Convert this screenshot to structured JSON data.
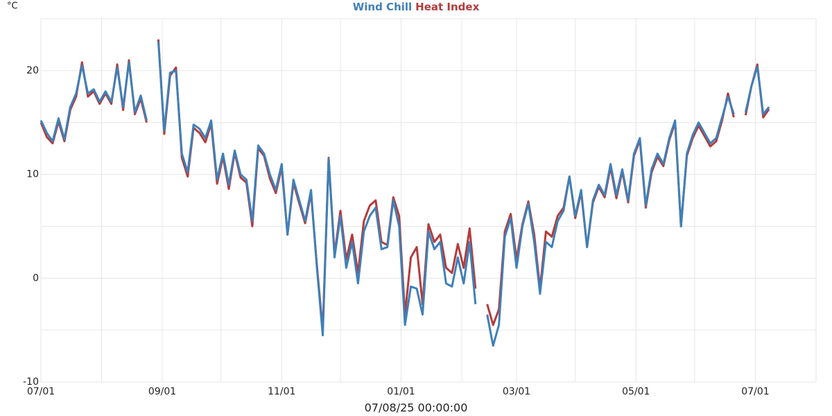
{
  "chart_data": {
    "type": "line",
    "y_label": "°C",
    "x_label": "07/08/25 00:00:00",
    "xlim": [
      0,
      396
    ],
    "xticks": [
      {
        "value": 0,
        "label": "07/01"
      },
      {
        "value": 62,
        "label": "09/01"
      },
      {
        "value": 123,
        "label": "11/01"
      },
      {
        "value": 184,
        "label": "01/01"
      },
      {
        "value": 243,
        "label": "03/01"
      },
      {
        "value": 304,
        "label": "05/01"
      },
      {
        "value": 365,
        "label": "07/01"
      }
    ],
    "x_minor_grid": [
      31,
      92,
      153,
      215,
      273,
      334
    ],
    "ylim": [
      -10,
      25
    ],
    "yticks": [
      -10,
      0,
      10,
      20
    ],
    "y_minor_grid": [
      -5,
      5,
      15
    ],
    "grid": true,
    "legend": "top",
    "x": [
      0,
      3,
      6,
      9,
      12,
      15,
      18,
      21,
      24,
      27,
      30,
      33,
      36,
      39,
      42,
      45,
      48,
      51,
      54,
      57,
      60,
      63,
      66,
      69,
      72,
      75,
      78,
      81,
      84,
      87,
      90,
      93,
      96,
      99,
      102,
      105,
      108,
      111,
      114,
      117,
      120,
      123,
      126,
      129,
      132,
      135,
      138,
      141,
      144,
      147,
      150,
      153,
      156,
      159,
      162,
      165,
      168,
      171,
      174,
      177,
      180,
      183,
      186,
      189,
      192,
      195,
      198,
      201,
      204,
      207,
      210,
      213,
      216,
      219,
      222,
      225,
      228,
      231,
      234,
      237,
      240,
      243,
      246,
      249,
      252,
      255,
      258,
      261,
      264,
      267,
      270,
      273,
      276,
      279,
      282,
      285,
      288,
      291,
      294,
      297,
      300,
      303,
      306,
      309,
      312,
      315,
      318,
      321,
      324,
      327,
      330,
      333,
      336,
      339,
      342,
      345,
      348,
      351,
      354,
      357,
      360,
      363,
      366,
      369,
      372
    ],
    "series": [
      {
        "name": "Wind Chill",
        "color": "#3f80b8",
        "values": [
          15.2,
          14.0,
          13.2,
          15.4,
          13.4,
          16.5,
          17.8,
          20.5,
          17.8,
          18.2,
          17.0,
          18.0,
          17.0,
          20.3,
          16.5,
          20.8,
          16.0,
          17.6,
          15.2,
          null,
          22.8,
          14.2,
          19.8,
          20.0,
          12.0,
          10.2,
          14.8,
          14.4,
          13.5,
          15.2,
          9.5,
          12.0,
          9.0,
          12.3,
          10.0,
          9.5,
          5.5,
          12.8,
          12.0,
          10.0,
          8.5,
          11.0,
          4.2,
          9.5,
          7.5,
          5.5,
          8.5,
          1.0,
          -5.5,
          11.5,
          2.0,
          6.0,
          1.0,
          3.5,
          -0.5,
          4.5,
          6.0,
          6.8,
          2.8,
          3.0,
          7.5,
          5.0,
          -4.5,
          -0.8,
          -1.0,
          -3.5,
          4.5,
          2.8,
          3.5,
          -0.5,
          -0.8,
          2.0,
          -0.5,
          3.5,
          -2.5,
          null,
          -3.5,
          -6.5,
          -4.5,
          4.0,
          5.8,
          1.0,
          5.0,
          7.2,
          3.5,
          -1.5,
          3.5,
          3.0,
          5.5,
          6.5,
          9.8,
          6.0,
          8.5,
          3.0,
          7.5,
          9.0,
          8.0,
          11.0,
          8.0,
          10.5,
          7.5,
          12.0,
          13.5,
          7.0,
          10.5,
          12.0,
          11.0,
          13.5,
          15.2,
          5.0,
          12.0,
          13.8,
          15.0,
          14.0,
          13.0,
          13.5,
          15.5,
          17.5,
          15.8,
          null,
          16.0,
          18.5,
          20.4,
          15.8,
          16.5
        ]
      },
      {
        "name": "Heat Index",
        "color": "#b43b3b",
        "values": [
          15.0,
          13.6,
          13.0,
          15.1,
          13.2,
          16.2,
          17.5,
          20.8,
          17.5,
          18.0,
          16.8,
          17.8,
          16.8,
          20.6,
          16.2,
          21.0,
          15.8,
          17.3,
          15.0,
          null,
          23.0,
          13.9,
          19.5,
          20.3,
          11.6,
          9.8,
          14.5,
          14.0,
          13.1,
          14.9,
          9.1,
          11.7,
          8.6,
          12.1,
          9.7,
          9.2,
          5.0,
          12.5,
          11.8,
          9.6,
          8.2,
          10.7,
          4.2,
          9.2,
          7.2,
          5.3,
          8.2,
          1.2,
          -5.0,
          11.6,
          2.3,
          6.5,
          1.8,
          4.2,
          0.5,
          5.5,
          7.0,
          7.5,
          3.5,
          3.2,
          7.8,
          6.0,
          -3.5,
          2.0,
          3.0,
          -2.5,
          5.2,
          3.5,
          4.2,
          1.0,
          0.5,
          3.3,
          1.0,
          4.8,
          -1.0,
          null,
          -2.5,
          -4.5,
          -3.0,
          4.5,
          6.2,
          1.8,
          5.2,
          7.4,
          4.2,
          -1.0,
          4.5,
          4.0,
          6.0,
          6.8,
          9.8,
          5.8,
          8.3,
          3.0,
          7.3,
          8.8,
          7.8,
          10.7,
          7.7,
          10.3,
          7.3,
          11.8,
          13.3,
          6.8,
          10.2,
          11.7,
          10.8,
          13.3,
          15.0,
          5.0,
          11.8,
          13.5,
          14.7,
          13.7,
          12.7,
          13.2,
          15.2,
          17.8,
          15.5,
          null,
          15.7,
          18.5,
          20.6,
          15.5,
          16.3
        ]
      }
    ]
  }
}
